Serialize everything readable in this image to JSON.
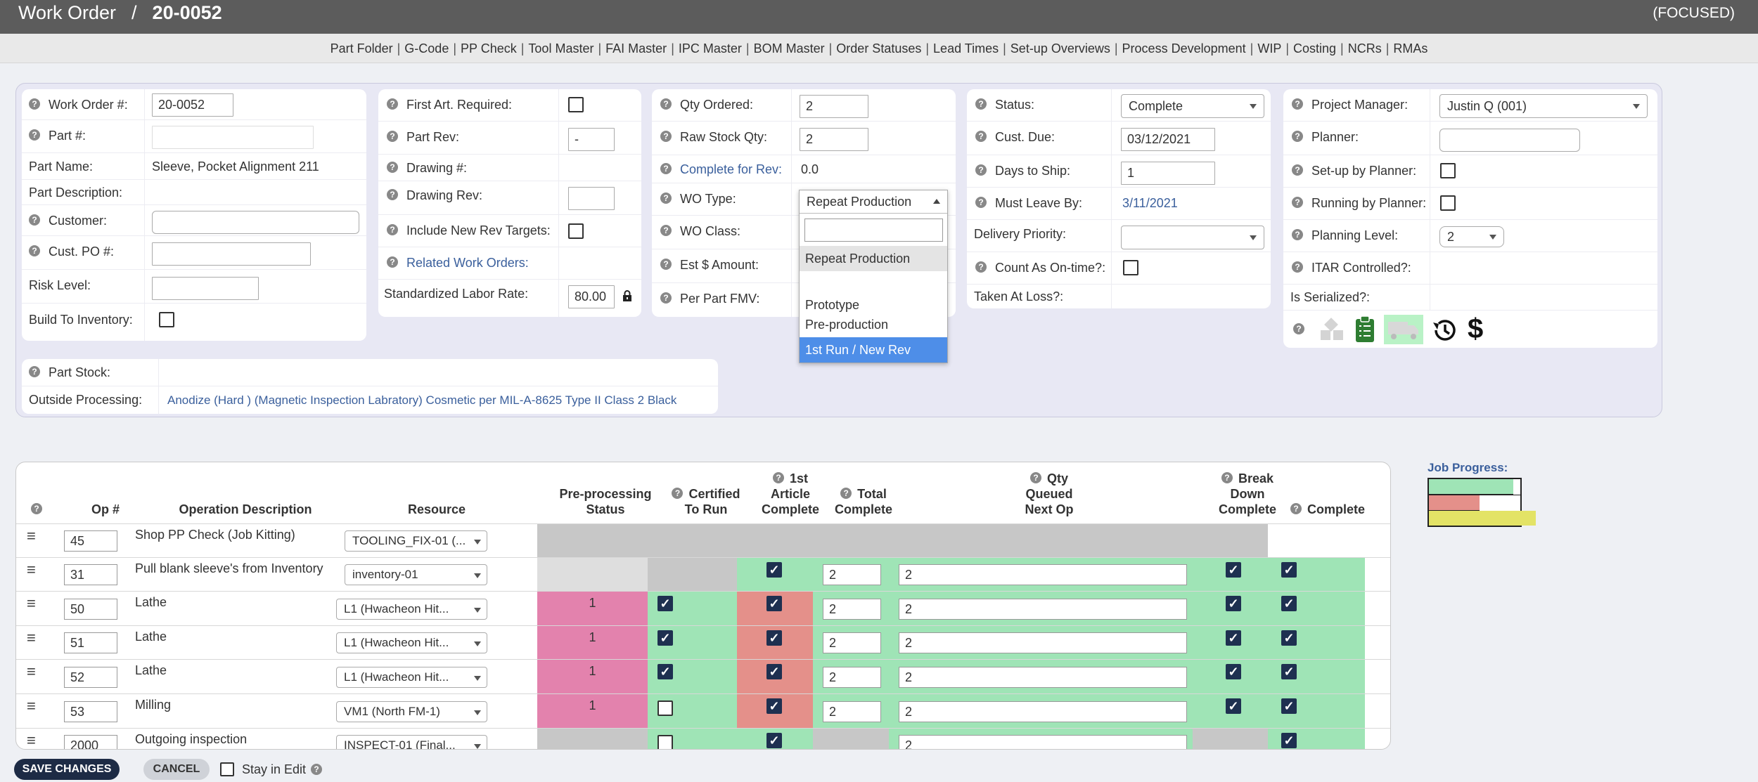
{
  "header": {
    "title": "Work Order",
    "sep": "/",
    "wo_number": "20-0052",
    "focused": "(FOCUSED)"
  },
  "nav": [
    "Part Folder",
    "G-Code",
    "PP Check",
    "Tool Master",
    "FAI Master",
    "IPC Master",
    "BOM Master",
    "Order Statuses",
    "Lead Times",
    "Set-up Overviews",
    "Process Development",
    "WIP",
    "Costing",
    "NCRs",
    "RMAs"
  ],
  "p1": {
    "wo_label": "Work Order #:",
    "wo_value": "20-0052",
    "part_label": "Part #:",
    "partname_label": "Part Name:",
    "partname_value": "Sleeve, Pocket Alignment 211",
    "partdesc_label": "Part Description:",
    "customer_label": "Customer:",
    "custpo_label": "Cust. PO #:",
    "risk_label": "Risk Level:",
    "build_label": "Build To Inventory:"
  },
  "p2": {
    "fa_label": "First Art. Required:",
    "rev_label": "Part Rev:",
    "rev_value": "-",
    "drawing_label": "Drawing #:",
    "drawrev_label": "Drawing Rev:",
    "include_label": "Include New Rev Targets:",
    "related_label": "Related Work Orders:",
    "rate_label": "Standardized Labor Rate:",
    "rate_value": "80.00"
  },
  "p3": {
    "qty_label": "Qty Ordered:",
    "qty_value": "2",
    "raw_label": "Raw Stock Qty:",
    "raw_value": "2",
    "cfr_label": "Complete for Rev:",
    "cfr_value": "0.0",
    "wotype_label": "WO Type:",
    "wotype_value": "Repeat Production",
    "woclass_label": "WO Class:",
    "est_label": "Est $ Amount:",
    "fmv_label": "Per Part FMV:"
  },
  "wotype_options": [
    "Repeat Production",
    "",
    "Prototype",
    "Pre-production",
    "1st Run / New Rev"
  ],
  "p4": {
    "status_label": "Status:",
    "status_value": "Complete",
    "due_label": "Cust. Due:",
    "due_value": "03/12/2021",
    "ship_label": "Days to Ship:",
    "ship_value": "1",
    "leave_label": "Must Leave By:",
    "leave_value": "3/11/2021",
    "priority_label": "Delivery Priority:",
    "ontime_label": "Count As On-time?:",
    "loss_label": "Taken At Loss?:"
  },
  "p5": {
    "pm_label": "Project Manager:",
    "pm_value": "Justin Q (001)",
    "planner_label": "Planner:",
    "setup_label": "Set-up by Planner:",
    "running_label": "Running by Planner:",
    "level_label": "Planning Level:",
    "level_value": "2",
    "itar_label": "ITAR Controlled?:",
    "serial_label": "Is Serialized?:"
  },
  "p6": {
    "stock_label": "Part Stock:",
    "op_label": "Outside Processing:",
    "op_value": "Anodize (Hard ) (Magnetic Inspection Labratory) Cosmetic per MIL-A-8625 Type II Class 2 Black"
  },
  "icons": {
    "history": "history-icon",
    "dollar": "$"
  },
  "table": {
    "headers": {
      "op": "Op #",
      "desc": "Operation Description",
      "res": "Resource",
      "pre1": "Pre-processing",
      "pre2": "Status",
      "cert1": "Certified",
      "cert2": "To Run",
      "fa1": "1st",
      "fa2": "Article",
      "fa3": "Complete",
      "tot1": "Total",
      "tot2": "Complete",
      "qq1": "Qty",
      "qq2": "Queued",
      "qq3": "Next Op",
      "bd1": "Break",
      "bd2": "Down",
      "bd3": "Complete",
      "comp": "Complete"
    },
    "rows": [
      {
        "op": "45",
        "desc": "Shop PP Check (Job Kitting)",
        "res": "TOOLING_FIX-01 (..."
      },
      {
        "op": "31",
        "desc": "Pull blank sleeve's from Inventory",
        "res": "inventory-01",
        "tot": "2",
        "qq": "2"
      },
      {
        "op": "50",
        "desc": "Lathe",
        "res": "L1 (Hwacheon Hit...",
        "pre": "1",
        "tot": "2",
        "qq": "2"
      },
      {
        "op": "51",
        "desc": "Lathe",
        "res": "L1 (Hwacheon Hit...",
        "pre": "1",
        "tot": "2",
        "qq": "2"
      },
      {
        "op": "52",
        "desc": "Lathe",
        "res": "L1 (Hwacheon Hit...",
        "pre": "1",
        "tot": "2",
        "qq": "2"
      },
      {
        "op": "53",
        "desc": "Milling",
        "res": "VM1 (North FM-1)",
        "pre": "1",
        "tot": "2",
        "qq": "2"
      },
      {
        "op": "2000",
        "desc": "Outgoing inspection",
        "res": "INSPECT-01 (Final...",
        "qq": "2"
      }
    ]
  },
  "job_progress": {
    "label": "Job Progress:",
    "green": 0.92,
    "red": 0.55,
    "yellow": 1.0
  },
  "footer": {
    "save": "SAVE CHANGES",
    "cancel": "CANCEL",
    "stay": "Stay in Edit"
  },
  "colors": {
    "accent": "#3a5f9c",
    "green": "#9fe4b6",
    "red": "#e4908a",
    "pink": "#e382ad",
    "selected": "#4e8ee8"
  }
}
